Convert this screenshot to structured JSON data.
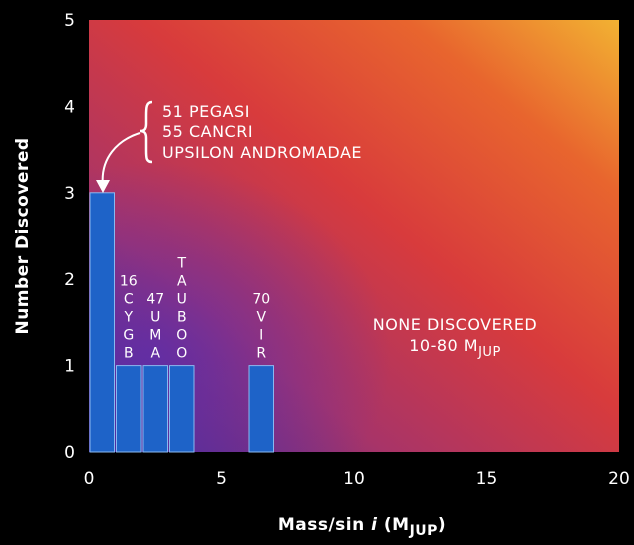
{
  "chart_data": {
    "type": "bar",
    "xlabel": "Mass/sin i (MJUP)",
    "xlabel_parts": {
      "prefix": "Mass/sin ",
      "italic": "i",
      "middle": " (M",
      "sub": "JUP",
      "suffix": ")"
    },
    "ylabel": "Number Discovered",
    "xlim": [
      0,
      20
    ],
    "ylim": [
      0,
      5
    ],
    "x_ticks": [
      "0",
      "5",
      "10",
      "15",
      "20"
    ],
    "y_ticks": [
      "0",
      "1",
      "2",
      "3",
      "4",
      "5"
    ],
    "grid": false,
    "bins": [
      {
        "x0": 0,
        "x1": 1,
        "value": 3,
        "label_lines": []
      },
      {
        "x0": 1,
        "x1": 2,
        "value": 1,
        "label_lines": [
          "16",
          "C",
          "Y",
          "G",
          "B"
        ]
      },
      {
        "x0": 2,
        "x1": 3,
        "value": 1,
        "label_lines": [
          "47",
          "U",
          "M",
          "A"
        ]
      },
      {
        "x0": 3,
        "x1": 4,
        "value": 1,
        "label_lines": [
          "T",
          "A",
          "U",
          "B",
          "O",
          "O"
        ]
      },
      {
        "x0": 6,
        "x1": 7,
        "value": 1,
        "label_lines": [
          "70",
          "V",
          "I",
          "R"
        ]
      }
    ],
    "annotation_list": [
      "51 PEGASI",
      "55 CANCRI",
      "UPSILON ANDROMADAE"
    ],
    "region_note": {
      "line1": "NONE DISCOVERED",
      "line2_prefix": "10-80 M",
      "line2_sub": "JUP"
    },
    "colors": {
      "bar": "#1e63c8",
      "bar_edge": "#8ab8f0",
      "background_low_left": "#4a2a9a",
      "background_mid": "#d03a48",
      "background_top_right": "#f0b030",
      "text": "#ffffff"
    }
  }
}
